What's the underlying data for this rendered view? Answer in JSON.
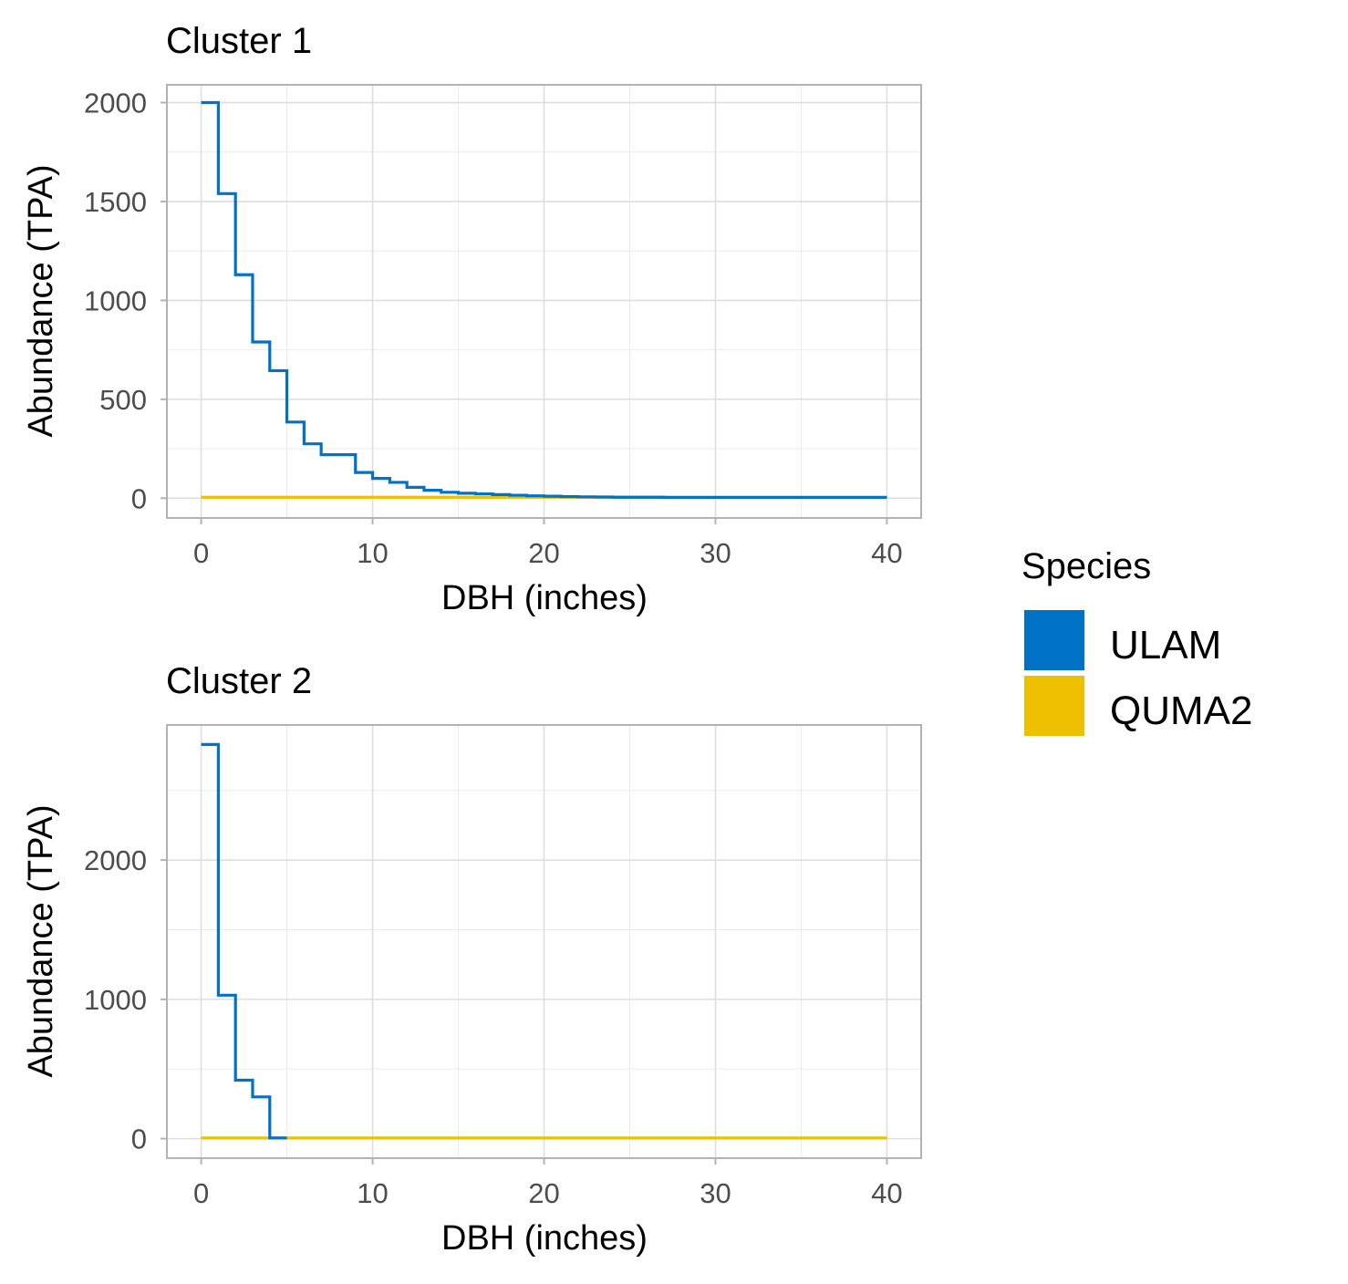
{
  "chart_data": [
    {
      "type": "line",
      "step": true,
      "title": "Cluster 1",
      "xlabel": "DBH (inches)",
      "ylabel": "Abundance (TPA)",
      "xlim": [
        -2,
        42
      ],
      "ylim": [
        -100,
        2090
      ],
      "xticks": [
        0,
        10,
        20,
        30,
        40
      ],
      "yticks": [
        0,
        500,
        1000,
        1500,
        2000
      ],
      "grid": true,
      "series": [
        {
          "name": "ULAM",
          "color": "#0072c6",
          "x": [
            0,
            1,
            2,
            3,
            4,
            5,
            6,
            7,
            8,
            9,
            10,
            11,
            12,
            13,
            14,
            15,
            16,
            17,
            18,
            19,
            20,
            21,
            22,
            23,
            24,
            25,
            26,
            27,
            28,
            29,
            30,
            31,
            32,
            33,
            34,
            35,
            36,
            37,
            38,
            39
          ],
          "y": [
            2000,
            1540,
            1130,
            790,
            645,
            385,
            275,
            220,
            220,
            130,
            100,
            80,
            55,
            40,
            30,
            25,
            22,
            18,
            15,
            12,
            10,
            8,
            7,
            6,
            5,
            5,
            5,
            4,
            4,
            4,
            4,
            4,
            4,
            4,
            4,
            4,
            4,
            4,
            4,
            4
          ]
        },
        {
          "name": "QUMA2",
          "color": "#efc000",
          "x": [
            0,
            40
          ],
          "y": [
            5,
            5
          ]
        }
      ]
    },
    {
      "type": "line",
      "step": true,
      "title": "Cluster 2",
      "xlabel": "DBH (inches)",
      "ylabel": "Abundance (TPA)",
      "xlim": [
        -2,
        42
      ],
      "ylim": [
        -140,
        2970
      ],
      "xticks": [
        0,
        10,
        20,
        30,
        40
      ],
      "yticks": [
        0,
        1000,
        2000
      ],
      "grid": true,
      "series": [
        {
          "name": "ULAM",
          "color": "#0072c6",
          "x": [
            0,
            1,
            2,
            3,
            4
          ],
          "y": [
            2830,
            1030,
            420,
            300,
            5
          ]
        },
        {
          "name": "QUMA2",
          "color": "#efc000",
          "x": [
            0,
            40
          ],
          "y": [
            5,
            5
          ]
        }
      ]
    }
  ],
  "legend": {
    "title": "Species",
    "items": [
      {
        "label": "ULAM",
        "color": "#0072c6"
      },
      {
        "label": "QUMA2",
        "color": "#efc000"
      }
    ]
  }
}
